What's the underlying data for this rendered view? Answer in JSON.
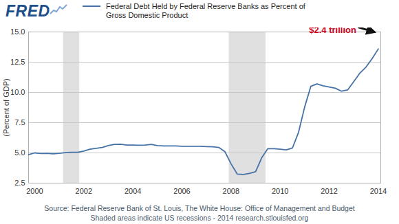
{
  "chart_data": {
    "type": "line",
    "logo": "FRED",
    "series": [
      {
        "name": "Federal Debt Held by Federal Reserve Banks as Percent of Gross Domestic Product",
        "color": "#4572a7",
        "values": [
          4.85,
          5.0,
          4.95,
          4.97,
          4.93,
          4.97,
          5.02,
          5.05,
          5.05,
          5.15,
          5.3,
          5.38,
          5.45,
          5.6,
          5.7,
          5.72,
          5.65,
          5.65,
          5.63,
          5.65,
          5.7,
          5.6,
          5.58,
          5.57,
          5.57,
          5.55,
          5.55,
          5.55,
          5.55,
          5.52,
          5.5,
          5.45,
          5.1,
          4.1,
          3.25,
          3.22,
          3.3,
          3.45,
          4.6,
          5.35,
          5.35,
          5.3,
          5.25,
          5.4,
          6.7,
          8.8,
          10.5,
          10.7,
          10.55,
          10.45,
          10.35,
          10.1,
          10.2,
          10.9,
          11.6,
          12.1,
          12.8,
          13.6
        ]
      }
    ],
    "x": [
      1999.75,
      2000.0,
      2000.25,
      2000.5,
      2000.75,
      2001.0,
      2001.25,
      2001.5,
      2001.75,
      2002.0,
      2002.25,
      2002.5,
      2002.75,
      2003.0,
      2003.25,
      2003.5,
      2003.75,
      2004.0,
      2004.25,
      2004.5,
      2004.75,
      2005.0,
      2005.25,
      2005.5,
      2005.75,
      2006.0,
      2006.25,
      2006.5,
      2006.75,
      2007.0,
      2007.25,
      2007.5,
      2007.75,
      2008.0,
      2008.25,
      2008.5,
      2008.75,
      2009.0,
      2009.25,
      2009.5,
      2009.75,
      2010.0,
      2010.25,
      2010.5,
      2010.75,
      2011.0,
      2011.25,
      2011.5,
      2011.75,
      2012.0,
      2012.25,
      2012.5,
      2012.75,
      2013.0,
      2013.25,
      2013.5,
      2013.75,
      2014.0
    ],
    "xlim": [
      1999.75,
      2014.1
    ],
    "xticks": [
      2000,
      2002,
      2004,
      2006,
      2008,
      2010,
      2012,
      2014
    ],
    "ylim": [
      2.5,
      15
    ],
    "yticks": [
      {
        "value": 2.5,
        "label": "2.5"
      },
      {
        "value": 5,
        "label": "5.0"
      },
      {
        "value": 7.5,
        "label": "7.5"
      },
      {
        "value": 10,
        "label": "10.0"
      },
      {
        "value": 12.5,
        "label": "12.5"
      },
      {
        "value": 15,
        "label": "15.0"
      }
    ],
    "ylabel": "(Percent of GDP)",
    "grid": true,
    "legend": "top",
    "recessions": [
      [
        2001.17,
        2001.83
      ],
      [
        2007.92,
        2009.42
      ]
    ],
    "annotations": [
      {
        "text": "$2.4 trillion",
        "x": 2014.0,
        "y": 13.6,
        "color": "#d0021b"
      }
    ],
    "source": "Source: Federal Reserve Bank of St. Louis, The White House: Office of Management and Budget",
    "caption": "Shaded areas indicate US recessions - 2014 research.stlouisfed.org"
  }
}
